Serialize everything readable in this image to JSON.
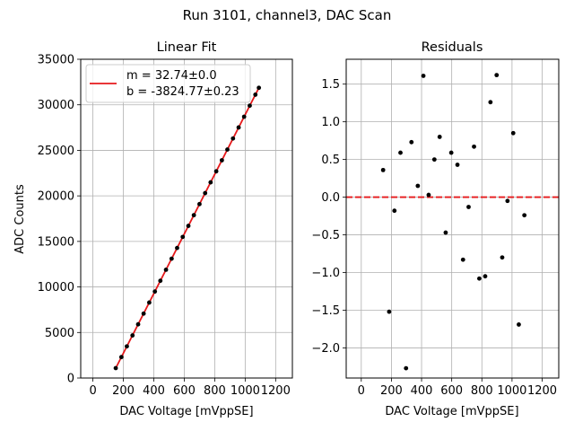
{
  "figure": {
    "suptitle": "Run 3101, channel3, DAC Scan"
  },
  "chart_data": [
    {
      "type": "scatter",
      "title": "Linear Fit",
      "xlabel": "DAC Voltage [mVppSE]",
      "ylabel": "ADC Counts",
      "xlim": [
        -80,
        1310
      ],
      "ylim": [
        0,
        35000
      ],
      "xticks": [
        0,
        200,
        400,
        600,
        800,
        1000,
        1200
      ],
      "yticks": [
        0,
        5000,
        10000,
        15000,
        20000,
        25000,
        30000,
        35000
      ],
      "grid": true,
      "legend": {
        "placement": "top-left",
        "entries": [
          "m = 32.74±0.0",
          "b = -3824.77±0.23"
        ]
      },
      "fit": {
        "slope": 32.74,
        "intercept": -3824.77,
        "color": "#e6191b"
      },
      "series": [
        {
          "marker_color": "#000000",
          "x": [
            150,
            187,
            223,
            260,
            297,
            333,
            370,
            407,
            443,
            480,
            517,
            553,
            590,
            627,
            663,
            700,
            737,
            773,
            810,
            847,
            883,
            920,
            957,
            993,
            1030,
            1067,
            1090
          ],
          "y": [
            1087,
            2299,
            3477,
            4678,
            5895,
            7074,
            8286,
            9498,
            10677,
            11889,
            13102,
            14280,
            15493,
            16704,
            17882,
            19094,
            20306,
            21485,
            22696,
            23908,
            25088,
            26302,
            27512,
            28691,
            29903,
            31114,
            31867
          ]
        }
      ]
    },
    {
      "type": "scatter",
      "title": "Residuals",
      "xlabel": "DAC Voltage [mVppSE]",
      "ylabel": "",
      "xlim": [
        -100,
        1310
      ],
      "ylim": [
        -2.4,
        1.83
      ],
      "xticks": [
        0,
        200,
        400,
        600,
        800,
        1000,
        1200
      ],
      "yticks": [
        -2.0,
        -1.5,
        -1.0,
        -0.5,
        0.0,
        0.5,
        1.0,
        1.5
      ],
      "ytick_labels": [
        "−2.0",
        "−1.5",
        "−1.0",
        "−0.5",
        "0.0",
        "0.5",
        "1.0",
        "1.5"
      ],
      "grid": true,
      "zero_line": {
        "y": 0,
        "color": "#e6191b",
        "style": "dashed"
      },
      "series": [
        {
          "marker_color": "#000000",
          "x": [
            145,
            185,
            220,
            260,
            297,
            333,
            375,
            412,
            447,
            485,
            520,
            560,
            597,
            638,
            675,
            712,
            748,
            783,
            822,
            857,
            898,
            935,
            970,
            1008,
            1045,
            1082
          ],
          "y": [
            0.36,
            -1.52,
            -0.18,
            0.59,
            -2.27,
            0.73,
            0.15,
            1.61,
            0.03,
            0.5,
            0.8,
            -0.47,
            0.59,
            0.43,
            -0.83,
            -0.13,
            0.67,
            -1.08,
            -1.05,
            1.26,
            1.62,
            -0.8,
            -0.05,
            0.85,
            -1.69,
            -0.24
          ]
        }
      ]
    }
  ]
}
